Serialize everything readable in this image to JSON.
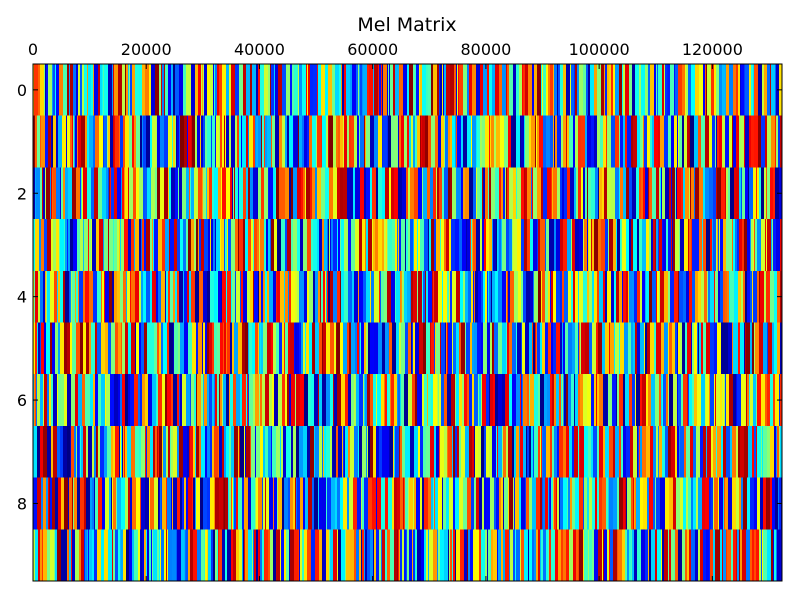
{
  "chart_data": {
    "type": "heatmap",
    "title": "Mel Matrix",
    "xlabel": "",
    "ylabel": "",
    "x_range": [
      0,
      132300
    ],
    "y_range": [
      -0.5,
      9.5
    ],
    "x_ticks": [
      {
        "value": 0,
        "label": "0"
      },
      {
        "value": 20000,
        "label": "20000"
      },
      {
        "value": 40000,
        "label": "40000"
      },
      {
        "value": 60000,
        "label": "60000"
      },
      {
        "value": 80000,
        "label": "80000"
      },
      {
        "value": 100000,
        "label": "100000"
      },
      {
        "value": 120000,
        "label": "120000"
      }
    ],
    "y_ticks": [
      {
        "value": 0,
        "label": "0"
      },
      {
        "value": 2,
        "label": "2"
      },
      {
        "value": 4,
        "label": "4"
      },
      {
        "value": 6,
        "label": "6"
      },
      {
        "value": 8,
        "label": "8"
      }
    ],
    "x_axis_position": "top",
    "y_axis_inverted": true,
    "rows": [
      0,
      1,
      2,
      3,
      4,
      5,
      6,
      7,
      8,
      9
    ],
    "colormap": "jet",
    "colormap_stops": [
      "#00007f",
      "#0000ff",
      "#007fff",
      "#00ffff",
      "#7fff7f",
      "#ffff00",
      "#ff7f00",
      "#ff0000",
      "#7f0000"
    ],
    "grid": false,
    "legend": "none"
  }
}
